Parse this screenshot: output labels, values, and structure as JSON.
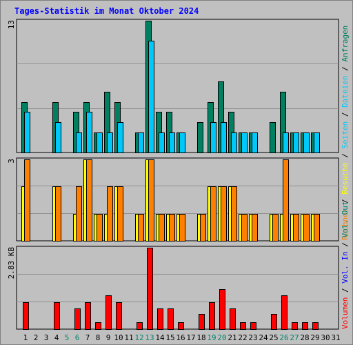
{
  "chart_data": {
    "title": "Tages-Statistik im Monat Oktober 2024",
    "type": "bar",
    "days": [
      "1",
      "2",
      "3",
      "4",
      "5",
      "6",
      "7",
      "8",
      "9",
      "10",
      "11",
      "12",
      "13",
      "14",
      "15",
      "16",
      "17",
      "18",
      "19",
      "20",
      "21",
      "22",
      "23",
      "24",
      "25",
      "26",
      "27",
      "28",
      "29",
      "30",
      "31"
    ],
    "weekend_days": [
      5,
      6,
      12,
      13,
      19,
      20,
      26,
      27
    ],
    "colors": {
      "anfragen": "#008060",
      "dateien": "#00c8f8",
      "seiten": "#00c8f8",
      "besuche": "#ffff00",
      "rechner": "#ff8000",
      "volumen": "#ff0000",
      "weekday_label": "#000000",
      "weekend_label": "#00806a",
      "title": "#0000ff",
      "gridline": "#909090"
    },
    "panels": [
      {
        "ymax_label": "13",
        "ymax": 13,
        "series": [
          {
            "key": "anfragen",
            "values": [
              5,
              0,
              0,
              5,
              0,
              4,
              5,
              2,
              6,
              5,
              0,
              2,
              13,
              4,
              4,
              2,
              0,
              3,
              5,
              7,
              4,
              2,
              2,
              0,
              3,
              6,
              2,
              2,
              2,
              0,
              0
            ]
          },
          {
            "key": "dateien",
            "values": [
              4,
              0,
              0,
              3,
              0,
              2,
              4,
              2,
              2,
              3,
              0,
              2,
              11,
              2,
              2,
              2,
              0,
              0,
              3,
              3,
              2,
              2,
              2,
              0,
              0,
              2,
              2,
              2,
              2,
              0,
              0
            ]
          }
        ]
      },
      {
        "ymax_label": "3",
        "ymax": 3,
        "series": [
          {
            "key": "besuche",
            "values": [
              2,
              0,
              0,
              2,
              0,
              1,
              3,
              1,
              1,
              2,
              0,
              1,
              3,
              1,
              1,
              1,
              0,
              1,
              2,
              2,
              2,
              1,
              1,
              0,
              1,
              1,
              1,
              1,
              1,
              0,
              0
            ]
          },
          {
            "key": "rechner",
            "values": [
              3,
              0,
              0,
              2,
              0,
              2,
              3,
              1,
              2,
              2,
              0,
              1,
              3,
              1,
              1,
              1,
              0,
              1,
              2,
              2,
              2,
              1,
              1,
              0,
              1,
              3,
              1,
              1,
              1,
              0,
              0
            ]
          }
        ]
      },
      {
        "ymax_label": "2.83 KB",
        "ymax": 2.83,
        "series": [
          {
            "key": "volumen",
            "values": [
              0.93,
              0,
              0,
              0.93,
              0,
              0.71,
              0.93,
              0.24,
              1.17,
              0.93,
              0,
              0.24,
              2.83,
              0.71,
              0.71,
              0.24,
              0,
              0.52,
              0.93,
              1.4,
              0.71,
              0.24,
              0.24,
              0,
              0.52,
              1.17,
              0.24,
              0.24,
              0.24,
              0,
              0
            ]
          }
        ]
      }
    ],
    "legend_top": [
      {
        "text": "Anfragen",
        "color_key": "anfragen"
      },
      {
        "text": "Dateien",
        "color_key": "dateien"
      },
      {
        "text": "Seiten",
        "color_key": "seiten"
      },
      {
        "text": "Besuche",
        "color_key": "besuche"
      },
      {
        "text": "Rechner",
        "color_key": "rechner"
      }
    ],
    "legend_bottom": [
      {
        "text": "Vol. Out",
        "color": "#00806a"
      },
      {
        "text": "Vol. In",
        "color": "#0000ff"
      },
      {
        "text": "Volumen",
        "color": "#ff0000"
      }
    ]
  }
}
